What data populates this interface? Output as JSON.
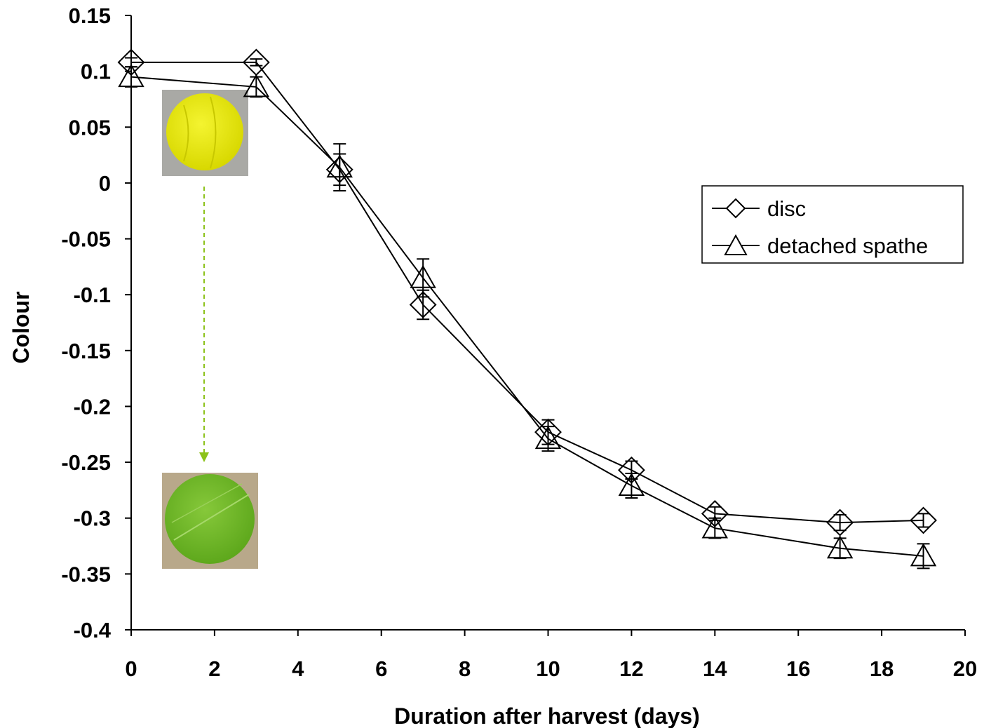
{
  "chart_data": {
    "type": "line",
    "xlabel": "Duration after harvest (days)",
    "ylabel": "Colour",
    "xlim": [
      0,
      20
    ],
    "ylim": [
      -0.4,
      0.15
    ],
    "x_ticks": [
      0,
      2,
      4,
      6,
      8,
      10,
      12,
      14,
      16,
      18,
      20
    ],
    "x_tick_labels": [
      "0",
      "2",
      "4",
      "6",
      "8",
      "10",
      "12",
      "14",
      "16",
      "18",
      "20"
    ],
    "y_ticks": [
      0.15,
      0.1,
      0.05,
      0,
      -0.05,
      -0.1,
      -0.15,
      -0.2,
      -0.25,
      -0.3,
      -0.35,
      -0.4
    ],
    "y_tick_labels": [
      "0.15",
      "0.1",
      "0.05",
      "0",
      "-0.05",
      "-0.1",
      "-0.15",
      "-0.2",
      "-0.25",
      "-0.3",
      "-0.35",
      "-0.4"
    ],
    "grid": false,
    "legend_position": "right",
    "series": [
      {
        "name": "disc",
        "marker": "diamond",
        "x": [
          0,
          3,
          5,
          7,
          10,
          12,
          14,
          17,
          19
        ],
        "y": [
          0.108,
          0.108,
          0.012,
          -0.109,
          -0.223,
          -0.257,
          -0.296,
          -0.304,
          -0.302
        ],
        "error": [
          0.004,
          0.003,
          0.014,
          0.013,
          0.011,
          0.008,
          0.006,
          0.007,
          0.006
        ]
      },
      {
        "name": "detached spathe",
        "marker": "triangle",
        "x": [
          0,
          3,
          5,
          7,
          10,
          12,
          14,
          17,
          19
        ],
        "y": [
          0.095,
          0.086,
          0.014,
          -0.085,
          -0.229,
          -0.271,
          -0.309,
          -0.327,
          -0.334
        ],
        "error": [
          0.009,
          0.009,
          0.021,
          0.017,
          0.011,
          0.011,
          0.009,
          0.009,
          0.011
        ]
      }
    ],
    "annotations": {
      "images": [
        {
          "name": "yellow-spathe-disc-photo",
          "x": 1.75,
          "y": 0.055,
          "color": "#e6e600"
        },
        {
          "name": "green-spathe-disc-photo",
          "x": 1.75,
          "y": -0.3,
          "color": "#7cc22b"
        }
      ],
      "arrow": {
        "from_x": 1.75,
        "from_y": 0.0,
        "to_x": 1.75,
        "to_y": -0.25,
        "color": "#8cc21a",
        "style": "dashed"
      }
    }
  }
}
